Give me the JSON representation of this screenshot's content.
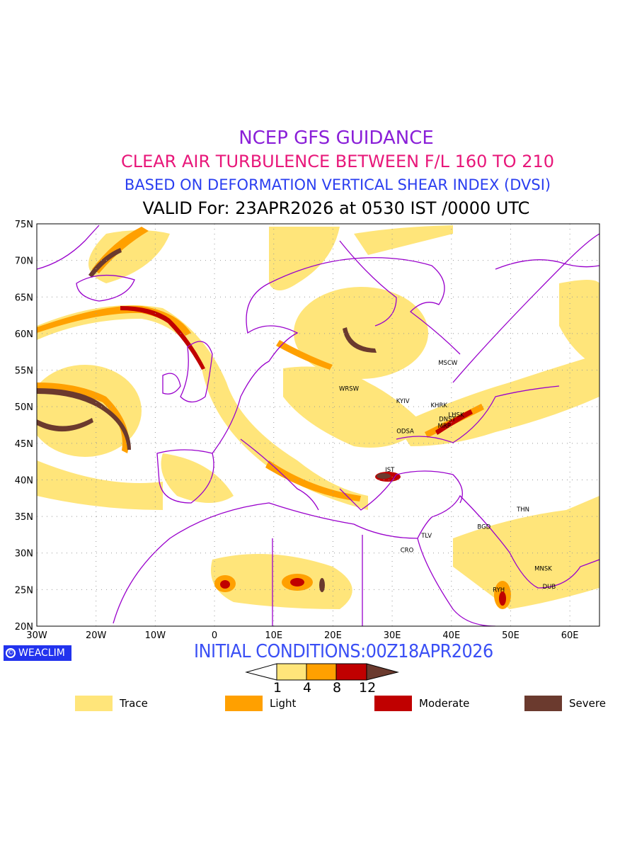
{
  "title": {
    "line1": "NCEP GFS GUIDANCE",
    "line2": "CLEAR AIR TURBULENCE BETWEEN F/L 160 TO 210",
    "line3": "BASED ON DEFORMATION VERTICAL SHEAR INDEX (DVSI)",
    "line4": "VALID For: 23APR2026 at 0530 IST /0000 UTC"
  },
  "map": {
    "lon_range": [
      -30,
      65
    ],
    "lat_range": [
      20,
      75
    ],
    "lat_ticks": [
      "20N",
      "25N",
      "30N",
      "35N",
      "40N",
      "45N",
      "50N",
      "55N",
      "60N",
      "65N",
      "70N",
      "75N"
    ],
    "lon_ticks": [
      "30W",
      "20W",
      "10W",
      "0",
      "10E",
      "20E",
      "30E",
      "40E",
      "50E",
      "60E"
    ],
    "boundary_color": "#9900cc",
    "cities": [
      {
        "name": "MSCW",
        "lon": 39.4,
        "lat": 56.0
      },
      {
        "name": "WRSW",
        "lon": 22.7,
        "lat": 52.5
      },
      {
        "name": "KYIV",
        "lon": 31.8,
        "lat": 50.8
      },
      {
        "name": "KHRK",
        "lon": 37.9,
        "lat": 50.2
      },
      {
        "name": "LHSK",
        "lon": 40.8,
        "lat": 48.9
      },
      {
        "name": "DNST",
        "lon": 39.3,
        "lat": 48.3
      },
      {
        "name": "MRP",
        "lon": 38.8,
        "lat": 47.4
      },
      {
        "name": "ODSA",
        "lon": 32.2,
        "lat": 46.7
      },
      {
        "name": "IST",
        "lon": 29.6,
        "lat": 41.4
      },
      {
        "name": "TLV",
        "lon": 35.8,
        "lat": 32.4
      },
      {
        "name": "CRO",
        "lon": 32.5,
        "lat": 30.4
      },
      {
        "name": "BGD",
        "lon": 45.5,
        "lat": 33.6
      },
      {
        "name": "THN",
        "lon": 52.1,
        "lat": 36.0
      },
      {
        "name": "MNSK",
        "lon": 55.5,
        "lat": 27.9
      },
      {
        "name": "DUB",
        "lon": 56.5,
        "lat": 25.4
      },
      {
        "name": "RYH",
        "lon": 48.0,
        "lat": 25.0
      }
    ]
  },
  "logo": "WEACLIM",
  "initial_conditions": "INITIAL CONDITIONS:00Z18APR2026",
  "colorbar": {
    "levels": [
      "1",
      "4",
      "8",
      "12"
    ],
    "colors": [
      "#ffe57a",
      "#ffa000",
      "#c00000",
      "#6b3a2e"
    ]
  },
  "legend": [
    {
      "label": "Trace",
      "color": "#ffe57a"
    },
    {
      "label": "Light",
      "color": "#ffa000"
    },
    {
      "label": "Moderate",
      "color": "#c00000"
    },
    {
      "label": "Severe",
      "color": "#6b3a2e"
    }
  ]
}
